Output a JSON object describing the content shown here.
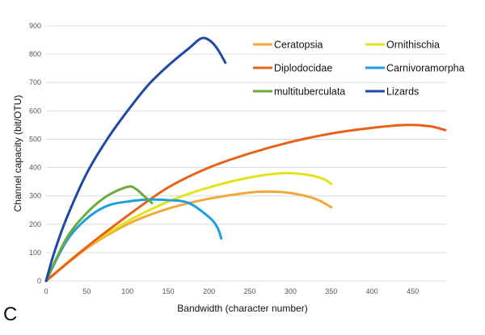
{
  "chart_data": {
    "type": "line",
    "panel_label": "C",
    "xlabel": "Bandwidth (character number)",
    "ylabel": "Channel capacity (bit/OTU)",
    "xlim": [
      0,
      490
    ],
    "ylim": [
      0,
      900
    ],
    "xticks": [
      0,
      50,
      100,
      150,
      200,
      250,
      300,
      350,
      400,
      450
    ],
    "yticks": [
      0,
      100,
      200,
      300,
      400,
      500,
      600,
      700,
      800,
      900
    ],
    "grid": "horizontal",
    "legend_placement": "top-right",
    "series": [
      {
        "name": "Ceratopsia",
        "color": "#F2A93B",
        "x": [
          0,
          50,
          100,
          150,
          200,
          250,
          275,
          300,
          330,
          350
        ],
        "y": [
          0,
          115,
          200,
          255,
          290,
          312,
          315,
          310,
          290,
          260
        ]
      },
      {
        "name": "Ornithischia",
        "color": "#E3E31B",
        "x": [
          0,
          50,
          100,
          150,
          200,
          250,
          290,
          320,
          340,
          350
        ],
        "y": [
          0,
          120,
          210,
          280,
          330,
          365,
          380,
          375,
          360,
          342
        ]
      },
      {
        "name": "Diplodocidae",
        "color": "#E8611A",
        "x": [
          0,
          50,
          100,
          150,
          200,
          250,
          300,
          350,
          400,
          440,
          470,
          490
        ],
        "y": [
          0,
          120,
          230,
          330,
          400,
          450,
          490,
          520,
          540,
          550,
          546,
          532
        ]
      },
      {
        "name": "Carnivoramorpha",
        "color": "#1E9FE0",
        "x": [
          0,
          25,
          50,
          75,
          100,
          125,
          150,
          175,
          200,
          210,
          215
        ],
        "y": [
          0,
          140,
          220,
          265,
          280,
          287,
          285,
          275,
          225,
          190,
          150
        ]
      },
      {
        "name": "multituberculata",
        "color": "#6AAA3C",
        "x": [
          0,
          25,
          50,
          75,
          100,
          110,
          120,
          130
        ],
        "y": [
          0,
          150,
          240,
          300,
          332,
          325,
          300,
          275
        ]
      },
      {
        "name": "Lizards",
        "color": "#1F48A8",
        "x": [
          0,
          10,
          25,
          50,
          75,
          100,
          125,
          150,
          175,
          190,
          200,
          210,
          220
        ],
        "y": [
          0,
          100,
          220,
          380,
          500,
          600,
          690,
          760,
          820,
          855,
          850,
          820,
          770
        ]
      }
    ]
  }
}
